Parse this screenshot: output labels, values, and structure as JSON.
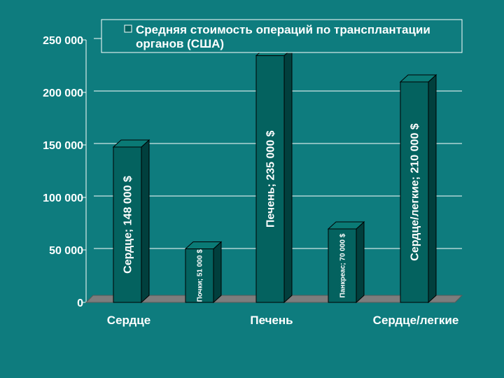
{
  "chart_data": {
    "type": "bar",
    "title": "",
    "legend": "Средняя стоимость операций по трансплантации органов (США)",
    "legend_lines": [
      "Средняя стоимость операций по трансплантации",
      "органов (США)"
    ],
    "legend_position": "top",
    "xlabel": "",
    "ylabel": "",
    "ylim": [
      0,
      250000
    ],
    "y_ticks": [
      0,
      50000,
      100000,
      150000,
      200000,
      250000
    ],
    "y_tick_labels": [
      "0",
      "50 000",
      "100 000",
      "150 000",
      "200 000",
      "250 000"
    ],
    "grid": true,
    "categories": [
      "Сердце",
      "Почки",
      "Печень",
      "Панкреас",
      "Сердце/легкие"
    ],
    "category_axis_labels": [
      "Сердце",
      "",
      "Печень",
      "",
      "Сердце/легкие"
    ],
    "values": [
      148000,
      51000,
      235000,
      70000,
      210000
    ],
    "data_labels": [
      "Сердце; 148 000 $",
      "Почки; 51 000 $",
      "Печень; 235 000 $",
      "Панкреас; 70 000 $",
      "Сердце/легкие; 210 000 $"
    ]
  },
  "colors": {
    "background": "#0e7c7e",
    "bar_front": "#04625f",
    "bar_top": "#0a7a75",
    "bar_side": "#013f3d",
    "floor": "#7d7d7d",
    "grid": "#ffffff",
    "text": "#ffffff"
  }
}
